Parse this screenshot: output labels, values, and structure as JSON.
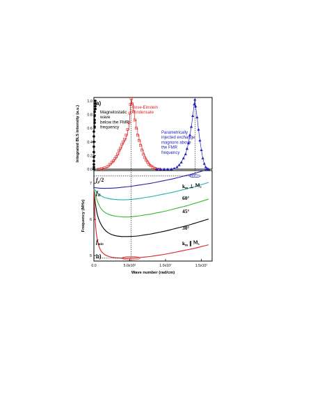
{
  "chart_data": [
    {
      "panel": "a)",
      "type": "line",
      "ylabel": "Integrated BLS intensity (a.u.)",
      "xlim": [
        0,
        16500000
      ],
      "ylim": [
        0,
        1.05
      ],
      "yticks": [
        "0.0",
        "0.2",
        "0.4",
        "0.6",
        "0.8",
        "1.0"
      ],
      "colors": {
        "magnetostatic": "#000000",
        "condensate": "#dd2222",
        "parametric": "#2222bb"
      },
      "annotations": {
        "magnetostatic": [
          "Magnetostatic",
          "wave",
          "below the FMR",
          "frequency"
        ],
        "condensate": [
          "Bose-Einstein",
          "condensate"
        ],
        "parametric": [
          "Parametrically",
          "injected exchange",
          "magnons above",
          "the FMR",
          "frequency"
        ]
      },
      "series": [
        {
          "key": "magnetostatic",
          "marker": "circle",
          "points": [
            [
              0,
              0.0
            ],
            [
              0,
              0.03
            ],
            [
              0,
              0.07
            ],
            [
              0,
              0.12
            ],
            [
              0,
              0.18
            ],
            [
              0,
              0.25
            ],
            [
              0,
              0.33
            ],
            [
              0,
              0.4
            ],
            [
              0,
              0.48
            ],
            [
              0,
              0.55
            ],
            [
              100000,
              0.62
            ],
            [
              100000,
              0.68
            ],
            [
              100000,
              0.72
            ],
            [
              100000,
              0.78
            ],
            [
              100000,
              0.84
            ],
            [
              200000,
              0.88
            ],
            [
              200000,
              0.92
            ],
            [
              200000,
              0.96
            ],
            [
              200000,
              1.0
            ]
          ]
        },
        {
          "key": "condensate",
          "marker": "square-open",
          "points": [
            [
              700000,
              0.0
            ],
            [
              1100000,
              0.01
            ],
            [
              1500000,
              0.02
            ],
            [
              1900000,
              0.04
            ],
            [
              2200000,
              0.07
            ],
            [
              2500000,
              0.1
            ],
            [
              2700000,
              0.12
            ],
            [
              2900000,
              0.15
            ],
            [
              3100000,
              0.18
            ],
            [
              3300000,
              0.22
            ],
            [
              3500000,
              0.27
            ],
            [
              3700000,
              0.31
            ],
            [
              3900000,
              0.36
            ],
            [
              4100000,
              0.4
            ],
            [
              4300000,
              0.44
            ],
            [
              4500000,
              0.5
            ],
            [
              4700000,
              0.58
            ],
            [
              4900000,
              0.68
            ],
            [
              5000000,
              0.82
            ],
            [
              5100000,
              0.95
            ],
            [
              5200000,
              1.03
            ],
            [
              5300000,
              0.96
            ],
            [
              5500000,
              0.85
            ],
            [
              5700000,
              0.72
            ],
            [
              5900000,
              0.6
            ],
            [
              6100000,
              0.5
            ],
            [
              6300000,
              0.42
            ],
            [
              6500000,
              0.35
            ],
            [
              6700000,
              0.28
            ],
            [
              6900000,
              0.22
            ],
            [
              7100000,
              0.17
            ],
            [
              7300000,
              0.13
            ],
            [
              7500000,
              0.1
            ],
            [
              7700000,
              0.07
            ],
            [
              7900000,
              0.05
            ],
            [
              8200000,
              0.03
            ],
            [
              8600000,
              0.01
            ],
            [
              9100000,
              0.0
            ]
          ]
        },
        {
          "key": "parametric",
          "marker": "triangle",
          "points": [
            [
              8800000,
              0.0
            ],
            [
              9300000,
              0.0
            ],
            [
              9800000,
              0.0
            ],
            [
              10300000,
              0.0
            ],
            [
              10800000,
              0.0
            ],
            [
              11200000,
              0.01
            ],
            [
              11600000,
              0.03
            ],
            [
              11900000,
              0.06
            ],
            [
              12200000,
              0.1
            ],
            [
              12500000,
              0.16
            ],
            [
              12800000,
              0.22
            ],
            [
              13000000,
              0.3
            ],
            [
              13200000,
              0.38
            ],
            [
              13400000,
              0.5
            ],
            [
              13600000,
              0.62
            ],
            [
              13800000,
              0.78
            ],
            [
              14000000,
              0.95
            ],
            [
              14100000,
              1.02
            ],
            [
              14200000,
              0.92
            ],
            [
              14400000,
              0.76
            ],
            [
              14600000,
              0.58
            ],
            [
              14800000,
              0.42
            ],
            [
              15000000,
              0.28
            ],
            [
              15200000,
              0.16
            ],
            [
              15400000,
              0.08
            ],
            [
              15600000,
              0.03
            ],
            [
              15800000,
              0.01
            ],
            [
              16000000,
              0.0
            ]
          ]
        }
      ]
    },
    {
      "panel": "b)",
      "type": "line",
      "xlabel": "Wave number (rad/cm)",
      "ylabel": "Frequency (MHz)",
      "xlim": [
        0,
        16500000
      ],
      "ylim": [
        4.85,
        7.35
      ],
      "yticks": [
        "5",
        "6",
        "7"
      ],
      "xticks": [
        {
          "value": 0,
          "label": "0.0"
        },
        {
          "value": 5000000,
          "label": "5.0x10⁶"
        },
        {
          "value": 10000000,
          "label": "1.0x10⁷"
        },
        {
          "value": 15000000,
          "label": "1.5x10⁷"
        }
      ],
      "level_labels": {
        "fp_half": "f",
        "fp_sub": "p",
        "fp_tail": "/2",
        "fh": "f",
        "fh_sub": "H",
        "fmin": "f",
        "fmin_sub": "min"
      },
      "levels": {
        "fp_half": 7.2,
        "fmin": 4.93
      },
      "condensate_k": 5200000,
      "injected_k": 14100000,
      "series": [
        {
          "name": "90°",
          "color": "#2222aa",
          "label_parts": {
            "k": "k",
            "k_sub": "m",
            "rel": " ⊥ ",
            "m": "M",
            "m_sub": "s"
          },
          "points": [
            [
              0,
              6.88
            ],
            [
              500000,
              6.87
            ],
            [
              1000000,
              6.86
            ],
            [
              2000000,
              6.86
            ],
            [
              3000000,
              6.87
            ],
            [
              4000000,
              6.89
            ],
            [
              5000000,
              6.91
            ],
            [
              6000000,
              6.94
            ],
            [
              7000000,
              6.97
            ],
            [
              8000000,
              7.0
            ],
            [
              9000000,
              7.04
            ],
            [
              10000000,
              7.08
            ],
            [
              11000000,
              7.12
            ],
            [
              12000000,
              7.17
            ],
            [
              13000000,
              7.22
            ],
            [
              14000000,
              7.27
            ],
            [
              15000000,
              7.33
            ],
            [
              16000000,
              7.39
            ]
          ]
        },
        {
          "name": "60°",
          "color": "#22b0b0",
          "label": "60°",
          "points": [
            [
              0,
              6.85
            ],
            [
              300000,
              6.78
            ],
            [
              700000,
              6.7
            ],
            [
              1200000,
              6.63
            ],
            [
              2000000,
              6.58
            ],
            [
              3000000,
              6.55
            ],
            [
              4000000,
              6.54
            ],
            [
              5000000,
              6.55
            ],
            [
              6000000,
              6.57
            ],
            [
              7000000,
              6.6
            ],
            [
              8000000,
              6.63
            ],
            [
              9000000,
              6.67
            ],
            [
              10000000,
              6.71
            ],
            [
              11000000,
              6.75
            ],
            [
              12000000,
              6.8
            ],
            [
              13000000,
              6.85
            ],
            [
              14000000,
              6.9
            ],
            [
              15000000,
              6.96
            ],
            [
              16000000,
              7.02
            ]
          ]
        },
        {
          "name": "45°",
          "color": "#33b833",
          "label": "45°",
          "points": [
            [
              0,
              6.83
            ],
            [
              250000,
              6.65
            ],
            [
              600000,
              6.45
            ],
            [
              1000000,
              6.3
            ],
            [
              1500000,
              6.2
            ],
            [
              2200000,
              6.13
            ],
            [
              3000000,
              6.09
            ],
            [
              4000000,
              6.07
            ],
            [
              5000000,
              6.07
            ],
            [
              6000000,
              6.09
            ],
            [
              7000000,
              6.12
            ],
            [
              8000000,
              6.15
            ],
            [
              9000000,
              6.19
            ],
            [
              10000000,
              6.23
            ],
            [
              11000000,
              6.28
            ],
            [
              12000000,
              6.33
            ],
            [
              13000000,
              6.38
            ],
            [
              14000000,
              6.44
            ],
            [
              15000000,
              6.5
            ],
            [
              16000000,
              6.56
            ]
          ]
        },
        {
          "name": "30°",
          "color": "#000000",
          "label": "30°",
          "points": [
            [
              0,
              6.8
            ],
            [
              200000,
              6.45
            ],
            [
              500000,
              6.12
            ],
            [
              900000,
              5.9
            ],
            [
              1400000,
              5.74
            ],
            [
              2000000,
              5.63
            ],
            [
              2800000,
              5.56
            ],
            [
              3800000,
              5.53
            ],
            [
              5000000,
              5.53
            ],
            [
              6000000,
              5.54
            ],
            [
              7000000,
              5.57
            ],
            [
              8000000,
              5.6
            ],
            [
              9000000,
              5.64
            ],
            [
              10000000,
              5.68
            ],
            [
              11000000,
              5.73
            ],
            [
              12000000,
              5.78
            ],
            [
              13000000,
              5.83
            ],
            [
              14000000,
              5.89
            ],
            [
              15000000,
              5.95
            ],
            [
              16000000,
              6.01
            ]
          ]
        },
        {
          "name": "0°",
          "color": "#dd2222",
          "label_parts": {
            "k": "k",
            "k_sub": "m",
            "rel": " ∥ ",
            "m": "M",
            "m_sub": "s"
          },
          "points": [
            [
              0,
              6.8
            ],
            [
              150000,
              6.1
            ],
            [
              350000,
              5.6
            ],
            [
              650000,
              5.3
            ],
            [
              1000000,
              5.13
            ],
            [
              1500000,
              5.03
            ],
            [
              2200000,
              4.97
            ],
            [
              3000000,
              4.94
            ],
            [
              4000000,
              4.93
            ],
            [
              5000000,
              4.93
            ],
            [
              6000000,
              4.94
            ],
            [
              7000000,
              4.96
            ],
            [
              8000000,
              4.98
            ],
            [
              9000000,
              5.01
            ],
            [
              10000000,
              5.04
            ],
            [
              11000000,
              5.08
            ],
            [
              12000000,
              5.12
            ],
            [
              13000000,
              5.16
            ],
            [
              14000000,
              5.2
            ],
            [
              15000000,
              5.25
            ],
            [
              16000000,
              5.3
            ]
          ]
        }
      ]
    }
  ]
}
